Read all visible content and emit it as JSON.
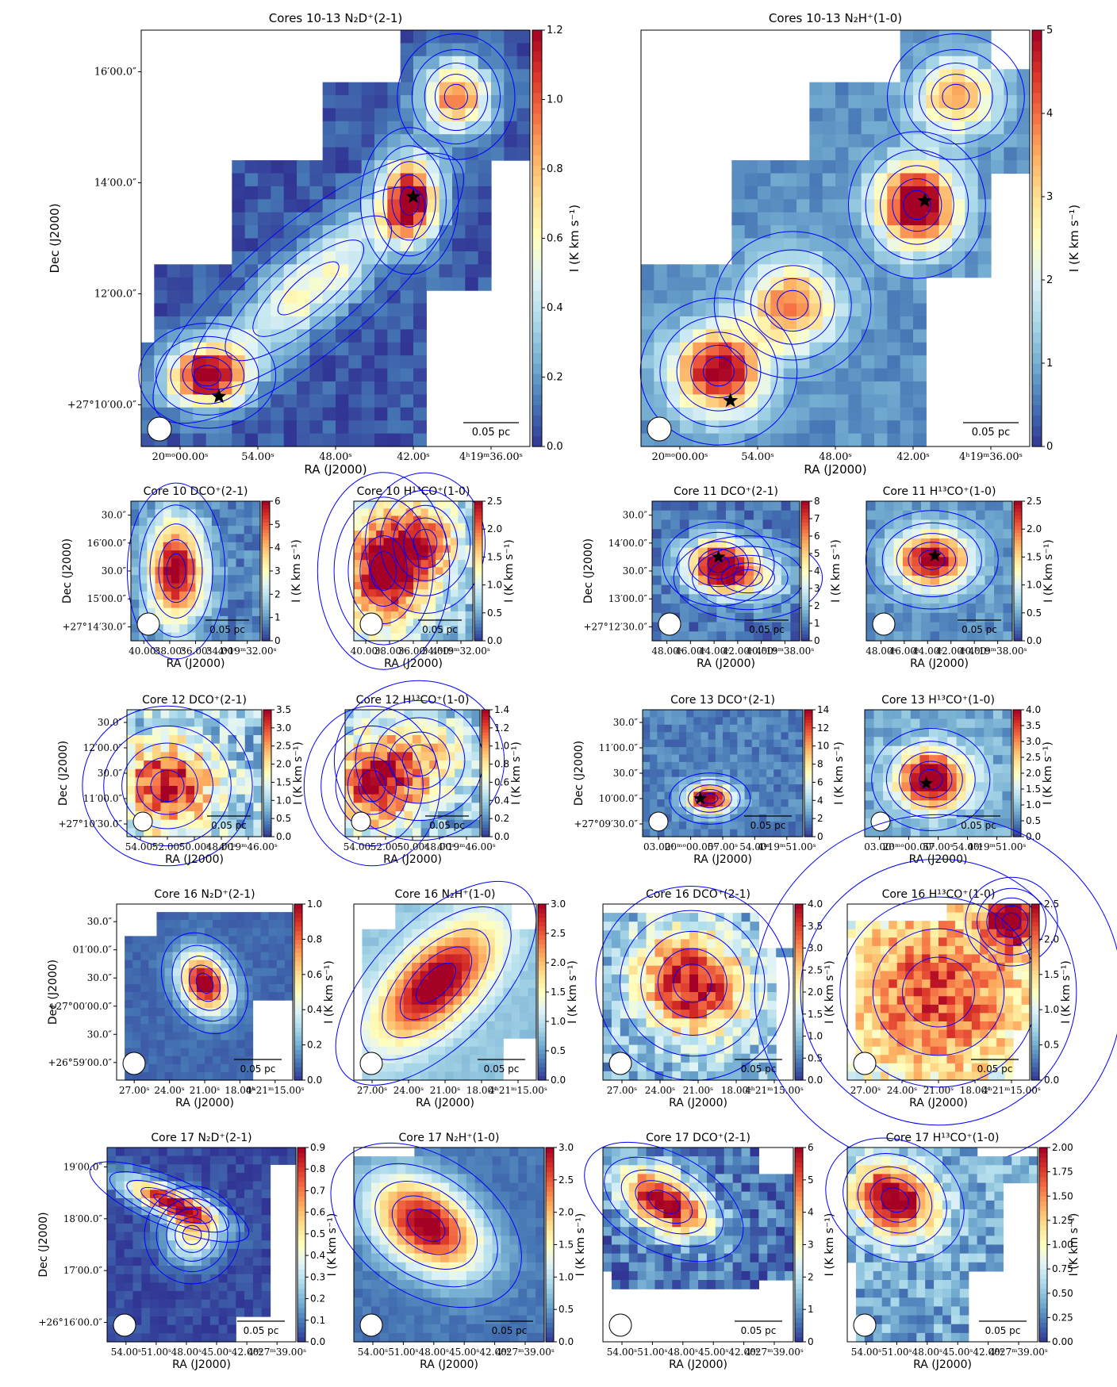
{
  "colorbar_colors": [
    "#313695",
    "#4575b4",
    "#74add1",
    "#abd9e9",
    "#e0f3f8",
    "#ffffbf",
    "#fee090",
    "#fdae61",
    "#f46d43",
    "#d73027",
    "#a50026"
  ],
  "contour_color": "#0000ff",
  "chart_data": [
    {
      "id": "p1",
      "type": "heatmap",
      "title": "Cores 10-13 N₂D⁺(2-1)",
      "xlabel": "RA (J2000)",
      "ylabel": "Dec (J2000)",
      "xticks": [
        "20ᵐᵒ00.00ˢ",
        "54.00ˢ",
        "48.00ˢ",
        "42.00ˢ",
        "4ʰ19ᵐ36.00ˢ"
      ],
      "yticks": [
        "+27°10′00.0″",
        "12′00.0″",
        "14′00.0″",
        "16′00.0″"
      ],
      "colorbar": {
        "label": "I (K km s⁻¹)",
        "min": 0,
        "max": 1.2,
        "ticks": [
          "0.0",
          "0.2",
          "0.4",
          "0.6",
          "0.8",
          "1.0",
          "1.2"
        ]
      },
      "scalebar": "0.05 pc",
      "stars": 2
    },
    {
      "id": "p2",
      "type": "heatmap",
      "title": "Cores 10-13 N₂H⁺(1-0)",
      "xlabel": "RA (J2000)",
      "ylabel": "",
      "xticks": [
        "20ᵐᵒ00.00ˢ",
        "54.00ˢ",
        "48.00ˢ",
        "42.00ˢ",
        "4ʰ19ᵐ36.00ˢ"
      ],
      "yticks": [],
      "colorbar": {
        "label": "I (K km s⁻¹)",
        "min": 0,
        "max": 5,
        "ticks": [
          "0",
          "1",
          "2",
          "3",
          "4",
          "5"
        ]
      },
      "scalebar": "0.05 pc",
      "stars": 2
    },
    {
      "id": "p3",
      "type": "heatmap",
      "title": "Core 10 DCO⁺(2-1)",
      "xlabel": "RA (J2000)",
      "ylabel": "Dec (J2000)",
      "xticks": [
        "40.00ˢ",
        "38.00ˢ",
        "36.00ˢ",
        "34.00ˢ",
        "4ʰ19ᵐ32.00ˢ"
      ],
      "yticks": [
        "+27°14′30.0″",
        "15′00.0″",
        "30.0″",
        "16′00.0″",
        "30.0″"
      ],
      "colorbar": {
        "label": "I (K km s⁻¹)",
        "min": 0,
        "max": 6,
        "ticks": [
          "0",
          "1",
          "2",
          "3",
          "4",
          "5",
          "6"
        ]
      },
      "scalebar": "0.05 pc",
      "stars": 0
    },
    {
      "id": "p4",
      "type": "heatmap",
      "title": "Core 10 H¹³CO⁺(1-0)",
      "xlabel": "RA (J2000)",
      "ylabel": "",
      "xticks": [
        "40.00ˢ",
        "38.00ˢ",
        "36.00ˢ",
        "34.00ˢ",
        "4ʰ19ᵐ32.00ˢ"
      ],
      "yticks": [],
      "colorbar": {
        "label": "I (K km s⁻¹)",
        "min": 0,
        "max": 2.5,
        "ticks": [
          "0.0",
          "0.5",
          "1.0",
          "1.5",
          "2.0",
          "2.5"
        ]
      },
      "scalebar": "0.05 pc",
      "stars": 0
    },
    {
      "id": "p5",
      "type": "heatmap",
      "title": "Core 11 DCO⁺(2-1)",
      "xlabel": "RA (J2000)",
      "ylabel": "Dec (J2000)",
      "xticks": [
        "48.00ˢ",
        "46.00ˢ",
        "44.00ˢ",
        "42.00ˢ",
        "40.00ˢ",
        "4ʰ19ᵐ38.00ˢ"
      ],
      "yticks": [
        "+27°12′30.0″",
        "13′00.0″",
        "30.0″",
        "14′00.0″",
        "30.0″"
      ],
      "colorbar": {
        "label": "I (K km s⁻¹)",
        "min": 0,
        "max": 8,
        "ticks": [
          "0",
          "1",
          "2",
          "3",
          "4",
          "5",
          "6",
          "7",
          "8"
        ]
      },
      "scalebar": "0.05 pc",
      "stars": 1
    },
    {
      "id": "p6",
      "type": "heatmap",
      "title": "Core 11 H¹³CO⁺(1-0)",
      "xlabel": "RA (J2000)",
      "ylabel": "",
      "xticks": [
        "48.00ˢ",
        "46.00ˢ",
        "44.00ˢ",
        "42.00ˢ",
        "40.00ˢ",
        "4ʰ19ᵐ38.00ˢ"
      ],
      "yticks": [],
      "colorbar": {
        "label": "I (K km s⁻¹)",
        "min": 0,
        "max": 2.5,
        "ticks": [
          "0.0",
          "0.5",
          "1.0",
          "1.5",
          "2.0",
          "2.5"
        ]
      },
      "scalebar": "0.05 pc",
      "stars": 1
    },
    {
      "id": "p7",
      "type": "heatmap",
      "title": "Core 12 DCO⁺(2-1)",
      "xlabel": "RA (J2000)",
      "ylabel": "Dec (J2000)",
      "xticks": [
        "54.00ˢ",
        "52.00ˢ",
        "50.00ˢ",
        "48.00ˢ",
        "4ʰ19ᵐ46.00ˢ"
      ],
      "yticks": [
        "+27°10′30.0″",
        "11′00.0″",
        "30.0″",
        "12′00.0″",
        "30.0″"
      ],
      "colorbar": {
        "label": "I (K km s⁻¹)",
        "min": 0,
        "max": 3.5,
        "ticks": [
          "0.0",
          "0.5",
          "1.0",
          "1.5",
          "2.0",
          "2.5",
          "3.0",
          "3.5"
        ]
      },
      "scalebar": "0.05 pc",
      "stars": 0
    },
    {
      "id": "p8",
      "type": "heatmap",
      "title": "Core 12 H¹³CO⁺(1-0)",
      "xlabel": "RA (J2000)",
      "ylabel": "",
      "xticks": [
        "54.00ˢ",
        "52.00ˢ",
        "50.00ˢ",
        "48.00ˢ",
        "4ʰ19ᵐ46.00ˢ"
      ],
      "yticks": [],
      "colorbar": {
        "label": "I (K km s⁻¹)",
        "min": 0,
        "max": 1.4,
        "ticks": [
          "0.0",
          "0.2",
          "0.4",
          "0.6",
          "0.8",
          "1.0",
          "1.2",
          "1.4"
        ]
      },
      "scalebar": "0.05 pc",
      "stars": 0
    },
    {
      "id": "p9",
      "type": "heatmap",
      "title": "Core 13 DCO⁺(2-1)",
      "xlabel": "RA (J2000)",
      "ylabel": "Dec (J2000)",
      "xticks": [
        "03.00ˢ",
        "20ᵐᵒ00.00ˢ",
        "57.00ˢ",
        "54.00ˢ",
        "4ʰ19ᵐ51.00ˢ"
      ],
      "yticks": [
        "+27°09′30.0″",
        "10′00.0″",
        "30.0″",
        "11′00.0″",
        "30.0″"
      ],
      "colorbar": {
        "label": "I (K km s⁻¹)",
        "min": 0,
        "max": 14,
        "ticks": [
          "0",
          "2",
          "4",
          "6",
          "8",
          "10",
          "12",
          "14"
        ]
      },
      "scalebar": "0.05 pc",
      "stars": 1
    },
    {
      "id": "p10",
      "type": "heatmap",
      "title": "Core 13 H¹³CO⁺(1-0)",
      "xlabel": "RA (J2000)",
      "ylabel": "",
      "xticks": [
        "03.00ˢ",
        "20ᵐᵒ00.00ˢ",
        "57.00ˢ",
        "54.00ˢ",
        "4ʰ19ᵐ51.00ˢ"
      ],
      "yticks": [],
      "colorbar": {
        "label": "I (K km s⁻¹)",
        "min": 0,
        "max": 4,
        "ticks": [
          "0.0",
          "0.5",
          "1.0",
          "1.5",
          "2.0",
          "2.5",
          "3.0",
          "3.5",
          "4.0"
        ]
      },
      "scalebar": "0.05 pc",
      "stars": 1
    },
    {
      "id": "p11",
      "type": "heatmap",
      "title": "Core 16 N₂D⁺(2-1)",
      "xlabel": "RA (J2000)",
      "ylabel": "Dec (J2000)",
      "xticks": [
        "27.00ˢ",
        "24.00ˢ",
        "21.00ˢ",
        "18.00ˢ",
        "4ʰ21ᵐ15.00ˢ"
      ],
      "yticks": [
        "+26°59′00.0″",
        "30.0″",
        "+27°00′00.0″",
        "30.0″",
        "01′00.0″",
        "30.0″"
      ],
      "colorbar": {
        "label": "I (K km s⁻¹)",
        "min": 0,
        "max": 1.0,
        "ticks": [
          "0.0",
          "0.2",
          "0.4",
          "0.6",
          "0.8",
          "1.0"
        ]
      },
      "scalebar": "0.05 pc",
      "stars": 0
    },
    {
      "id": "p12",
      "type": "heatmap",
      "title": "Core 16 N₂H⁺(1-0)",
      "xlabel": "RA (J2000)",
      "ylabel": "",
      "xticks": [
        "27.00ˢ",
        "24.00ˢ",
        "21.00ˢ",
        "18.00ˢ",
        "4ʰ21ᵐ15.00ˢ"
      ],
      "yticks": [],
      "colorbar": {
        "label": "I (K km s⁻¹)",
        "min": 0,
        "max": 3.0,
        "ticks": [
          "0.0",
          "0.5",
          "1.0",
          "1.5",
          "2.0",
          "2.5",
          "3.0"
        ]
      },
      "scalebar": "0.05 pc",
      "stars": 0
    },
    {
      "id": "p13",
      "type": "heatmap",
      "title": "Core 16 DCO⁺(2-1)",
      "xlabel": "RA (J2000)",
      "ylabel": "",
      "xticks": [
        "27.00ˢ",
        "24.00ˢ",
        "21.00ˢ",
        "18.00ˢ",
        "4ʰ21ᵐ15.00ˢ"
      ],
      "yticks": [],
      "colorbar": {
        "label": "I (K km s⁻¹)",
        "min": 0,
        "max": 4.0,
        "ticks": [
          "0.0",
          "0.5",
          "1.0",
          "1.5",
          "2.0",
          "2.5",
          "3.0",
          "3.5",
          "4.0"
        ]
      },
      "scalebar": "0.05 pc",
      "stars": 0
    },
    {
      "id": "p14",
      "type": "heatmap",
      "title": "Core 16 H¹³CO⁺(1-0)",
      "xlabel": "RA (J2000)",
      "ylabel": "",
      "xticks": [
        "27.00ˢ",
        "24.00ˢ",
        "21.00ˢ",
        "18.00ˢ",
        "4ʰ21ᵐ15.00ˢ"
      ],
      "yticks": [],
      "colorbar": {
        "label": "I (K km s⁻¹)",
        "min": 0,
        "max": 2.5,
        "ticks": [
          "0.0",
          "0.5",
          "1.0",
          "1.5",
          "2.0",
          "2.5"
        ]
      },
      "scalebar": "0.05 pc",
      "stars": 0
    },
    {
      "id": "p15",
      "type": "heatmap",
      "title": "Core 17 N₂D⁺(2-1)",
      "xlabel": "RA (J2000)",
      "ylabel": "Dec (J2000)",
      "xticks": [
        "54.00ˢ",
        "51.00ˢ",
        "48.00ˢ",
        "45.00ˢ",
        "42.00ˢ",
        "4ʰ27ᵐ39.00ˢ"
      ],
      "yticks": [
        "+26°16′00.0″",
        "17′00.0″",
        "18′00.0″",
        "19′00.0″"
      ],
      "colorbar": {
        "label": "I (K km s⁻¹)",
        "min": 0,
        "max": 0.9,
        "ticks": [
          "0.0",
          "0.1",
          "0.2",
          "0.3",
          "0.4",
          "0.5",
          "0.6",
          "0.7",
          "0.8",
          "0.9"
        ]
      },
      "scalebar": "0.05 pc",
      "stars": 0
    },
    {
      "id": "p16",
      "type": "heatmap",
      "title": "Core 17 N₂H⁺(1-0)",
      "xlabel": "RA (J2000)",
      "ylabel": "",
      "xticks": [
        "54.00ˢ",
        "51.00ˢ",
        "48.00ˢ",
        "45.00ˢ",
        "42.00ˢ",
        "4ʰ27ᵐ39.00ˢ"
      ],
      "yticks": [],
      "colorbar": {
        "label": "I (K km s⁻¹)",
        "min": 0,
        "max": 3.0,
        "ticks": [
          "0.0",
          "0.5",
          "1.0",
          "1.5",
          "2.0",
          "2.5",
          "3.0"
        ]
      },
      "scalebar": "0.05 pc",
      "stars": 0
    },
    {
      "id": "p17",
      "type": "heatmap",
      "title": "Core 17 DCO⁺(2-1)",
      "xlabel": "RA (J2000)",
      "ylabel": "",
      "xticks": [
        "54.00ˢ",
        "51.00ˢ",
        "48.00ˢ",
        "45.00ˢ",
        "42.00ˢ",
        "4ʰ27ᵐ39.00ˢ"
      ],
      "yticks": [],
      "colorbar": {
        "label": "I (K km s⁻¹)",
        "min": 0,
        "max": 6,
        "ticks": [
          "0",
          "1",
          "2",
          "3",
          "4",
          "5",
          "6"
        ]
      },
      "scalebar": "0.05 pc",
      "stars": 0
    },
    {
      "id": "p18",
      "type": "heatmap",
      "title": "Core 17 H¹³CO⁺(1-0)",
      "xlabel": "RA (J2000)",
      "ylabel": "",
      "xticks": [
        "54.00ˢ",
        "51.00ˢ",
        "48.00ˢ",
        "45.00ˢ",
        "42.00ˢ",
        "4ʰ27ᵐ39.00ˢ"
      ],
      "yticks": [],
      "colorbar": {
        "label": "I (K km s⁻¹)",
        "min": 0,
        "max": 2.0,
        "ticks": [
          "0.00",
          "0.25",
          "0.50",
          "0.75",
          "1.00",
          "1.25",
          "1.50",
          "1.75",
          "2.00"
        ]
      },
      "scalebar": "0.05 pc",
      "stars": 0
    }
  ]
}
